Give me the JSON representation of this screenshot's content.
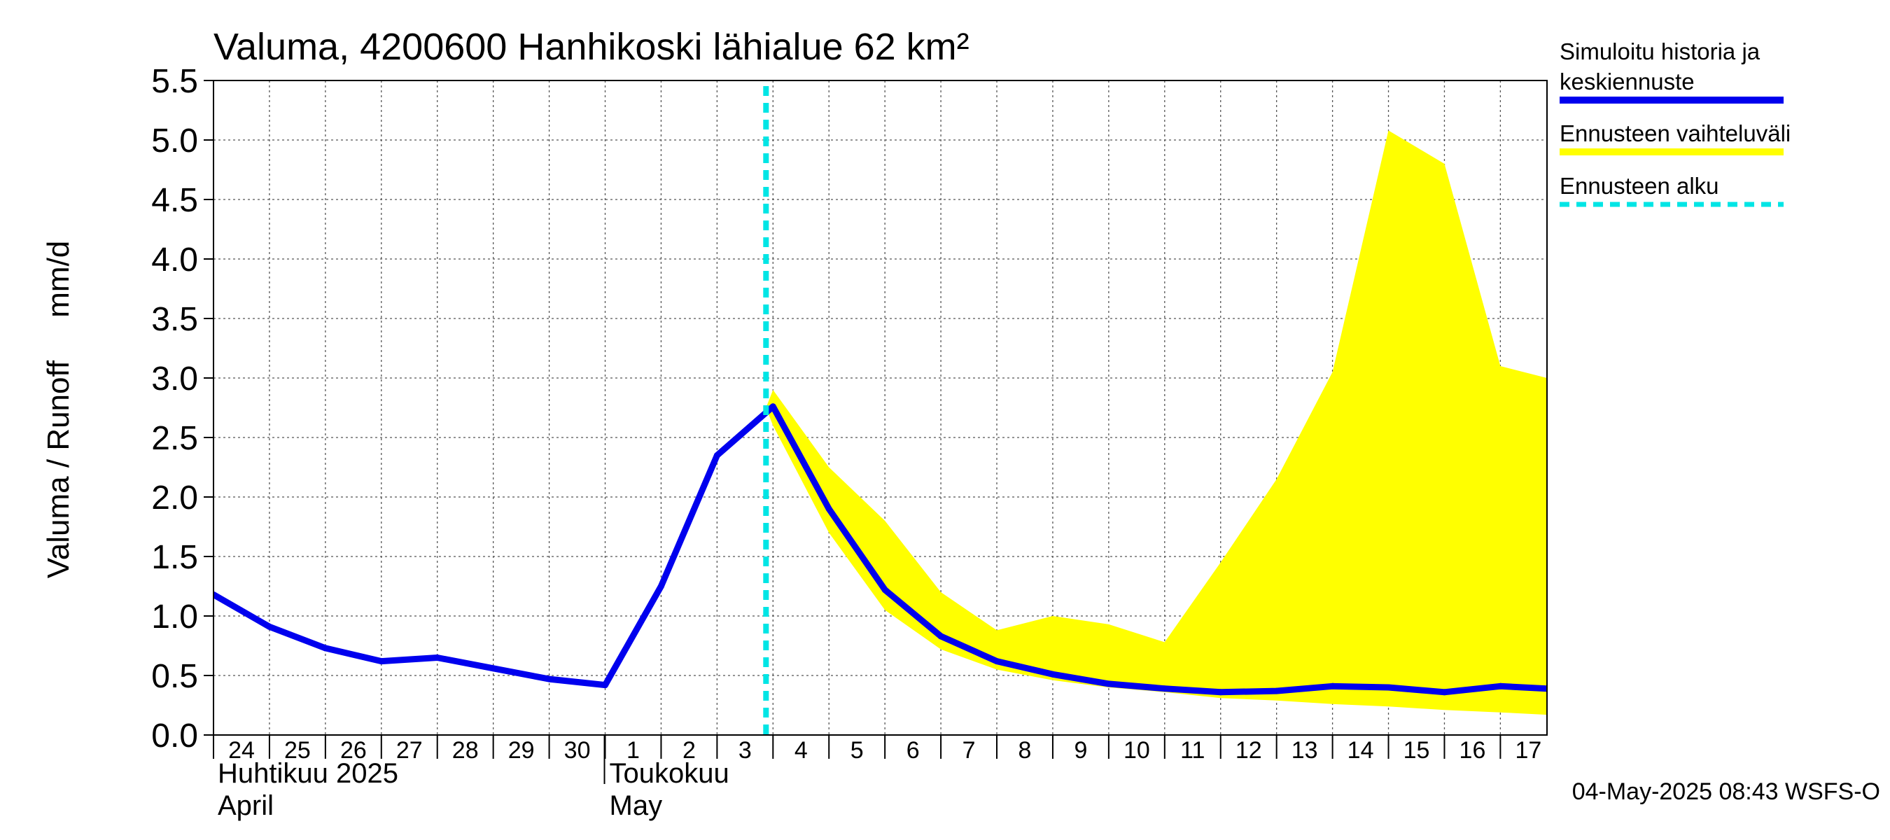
{
  "chart_data": {
    "type": "line",
    "title": "Valuma, 4200600 Hanhikoski lähialue 62 km²",
    "ylabel": "Valuma / Runoff     mm/d",
    "ylim": [
      0,
      5.5
    ],
    "yticks": [
      "0.0",
      "0.5",
      "1.0",
      "1.5",
      "2.0",
      "2.5",
      "3.0",
      "3.5",
      "4.0",
      "4.5",
      "5.0",
      "5.5"
    ],
    "xlim": [
      "2025-04-24",
      "2025-05-17T20:00"
    ],
    "day_labels": [
      "24",
      "25",
      "26",
      "27",
      "28",
      "29",
      "30",
      "1",
      "2",
      "3",
      "4",
      "5",
      "6",
      "7",
      "8",
      "9",
      "10",
      "11",
      "12",
      "13",
      "14",
      "15",
      "16",
      "17"
    ],
    "month_labels": [
      {
        "line1": "Huhtikuu  2025",
        "line2": "April",
        "start": "2025-04-24"
      },
      {
        "line1": "Toukokuu",
        "line2": "May",
        "start": "2025-05-01"
      }
    ],
    "grid": true,
    "legend_position": "right",
    "forecast_start": "2025-05-03T21:00",
    "series": [
      {
        "name": "Simuloitu historia ja keskiennuste",
        "color": "#0000ee",
        "x": [
          "2025-04-24",
          "2025-04-25",
          "2025-04-26",
          "2025-04-27",
          "2025-04-28",
          "2025-04-29",
          "2025-04-30",
          "2025-05-01",
          "2025-05-02",
          "2025-05-03",
          "2025-05-04",
          "2025-05-05",
          "2025-05-06",
          "2025-05-07",
          "2025-05-08",
          "2025-05-09",
          "2025-05-10",
          "2025-05-11",
          "2025-05-12",
          "2025-05-13",
          "2025-05-14",
          "2025-05-15",
          "2025-05-16",
          "2025-05-17",
          "2025-05-17T20:00"
        ],
        "values": [
          1.18,
          0.91,
          0.73,
          0.62,
          0.65,
          0.56,
          0.47,
          0.42,
          1.25,
          2.35,
          2.76,
          1.9,
          1.22,
          0.83,
          0.62,
          0.51,
          0.43,
          0.39,
          0.36,
          0.37,
          0.41,
          0.4,
          0.36,
          0.41,
          0.39
        ]
      },
      {
        "name": "Ennusteen vaihteluväli",
        "type": "area",
        "color": "#ffff00",
        "x": [
          "2025-05-03T21:00",
          "2025-05-04",
          "2025-05-05",
          "2025-05-06",
          "2025-05-07",
          "2025-05-08",
          "2025-05-09",
          "2025-05-10",
          "2025-05-11",
          "2025-05-12",
          "2025-05-13",
          "2025-05-14",
          "2025-05-15",
          "2025-05-16",
          "2025-05-17",
          "2025-05-17T20:00"
        ],
        "upper": [
          2.75,
          2.9,
          2.25,
          1.8,
          1.2,
          0.88,
          1.0,
          0.93,
          0.78,
          1.45,
          2.15,
          3.05,
          5.08,
          4.8,
          3.1,
          3.0
        ],
        "lower": [
          2.75,
          2.6,
          1.7,
          1.05,
          0.72,
          0.55,
          0.46,
          0.4,
          0.36,
          0.31,
          0.29,
          0.26,
          0.24,
          0.21,
          0.19,
          0.17
        ]
      }
    ]
  },
  "legend": {
    "items": [
      {
        "label_lines": [
          "Simuloitu historia ja",
          "keskiennuste"
        ],
        "color": "#0000ee",
        "style": "solid"
      },
      {
        "label_lines": [
          "Ennusteen vaihteluväli"
        ],
        "color": "#ffff00",
        "style": "solid"
      },
      {
        "label_lines": [
          "Ennusteen alku"
        ],
        "color": "#00e5e5",
        "style": "dashed"
      }
    ]
  },
  "footer": {
    "timestamp": "04-May-2025 08:43 WSFS-O"
  }
}
